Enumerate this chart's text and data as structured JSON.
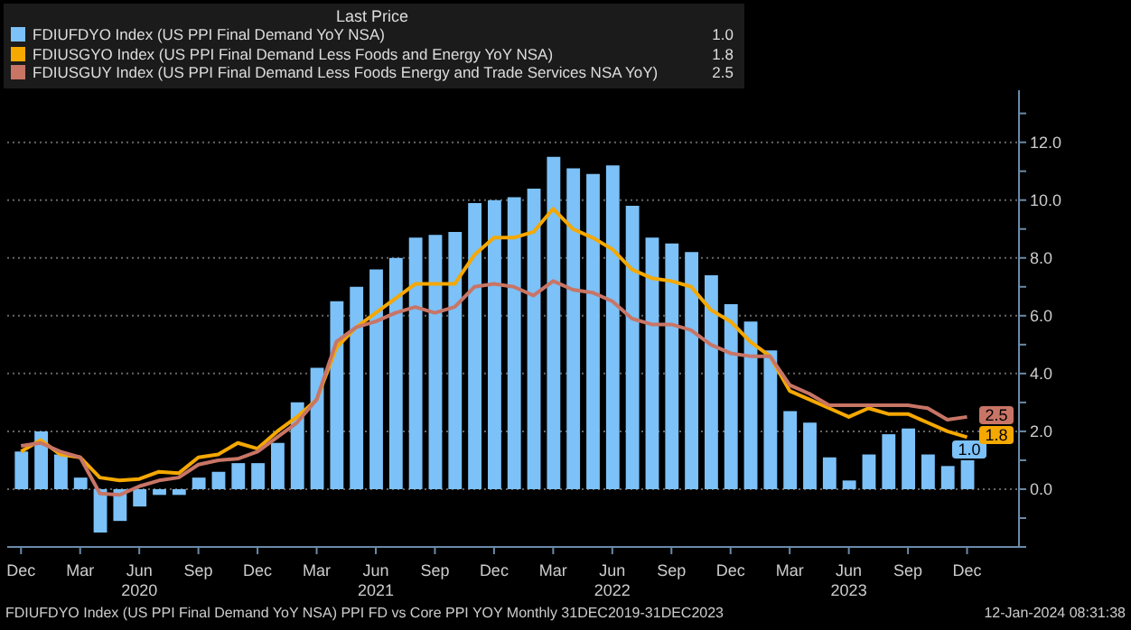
{
  "chart_data": {
    "type": "bar",
    "legend_title": "Last Price",
    "x": [
      "2019-12",
      "2020-01",
      "2020-02",
      "2020-03",
      "2020-04",
      "2020-05",
      "2020-06",
      "2020-07",
      "2020-08",
      "2020-09",
      "2020-10",
      "2020-11",
      "2020-12",
      "2021-01",
      "2021-02",
      "2021-03",
      "2021-04",
      "2021-05",
      "2021-06",
      "2021-07",
      "2021-08",
      "2021-09",
      "2021-10",
      "2021-11",
      "2021-12",
      "2022-01",
      "2022-02",
      "2022-03",
      "2022-04",
      "2022-05",
      "2022-06",
      "2022-07",
      "2022-08",
      "2022-09",
      "2022-10",
      "2022-11",
      "2022-12",
      "2023-01",
      "2023-02",
      "2023-03",
      "2023-04",
      "2023-05",
      "2023-06",
      "2023-07",
      "2023-08",
      "2023-09",
      "2023-10",
      "2023-11",
      "2023-12"
    ],
    "series": [
      {
        "name": "FDIUFDYO Index (US PPI Final Demand YoY NSA)",
        "color": "#7cc1f8",
        "values": [
          1.3,
          2.0,
          1.2,
          0.4,
          -1.5,
          -1.1,
          -0.6,
          -0.2,
          -0.2,
          0.4,
          0.6,
          0.9,
          0.9,
          1.6,
          3.0,
          4.2,
          6.5,
          7.0,
          7.6,
          8.0,
          8.7,
          8.8,
          8.9,
          9.9,
          10.0,
          10.1,
          10.4,
          11.5,
          11.1,
          10.9,
          11.2,
          9.8,
          8.7,
          8.5,
          8.2,
          7.4,
          6.4,
          5.8,
          4.8,
          2.7,
          2.3,
          1.1,
          0.3,
          1.2,
          1.9,
          2.1,
          1.2,
          0.8,
          1.0
        ],
        "value_labels": [
          null,
          null,
          null,
          null,
          null,
          null,
          null,
          null,
          null,
          null,
          null,
          null,
          null,
          null,
          null,
          null,
          null,
          null,
          null,
          null,
          null,
          null,
          null,
          null,
          null,
          null,
          null,
          null,
          null,
          null,
          null,
          null,
          null,
          null,
          null,
          null,
          null,
          null,
          null,
          null,
          null,
          null,
          null,
          null,
          null,
          null,
          null,
          null,
          "1.0"
        ]
      },
      {
        "type": "line",
        "name": "FDIUSGYO Index (US PPI Final Demand Less Foods and Energy YoY NSA)",
        "color": "#f5a800",
        "values": [
          1.3,
          1.7,
          1.2,
          1.1,
          0.4,
          0.3,
          0.35,
          0.6,
          0.55,
          1.1,
          1.2,
          1.6,
          1.4,
          2.0,
          2.5,
          3.1,
          4.9,
          5.6,
          6.1,
          6.6,
          7.1,
          7.1,
          7.1,
          8.1,
          8.7,
          8.7,
          8.9,
          9.7,
          9.0,
          8.7,
          8.3,
          7.6,
          7.3,
          7.2,
          7.0,
          6.2,
          5.8,
          5.1,
          4.6,
          3.4,
          3.1,
          2.8,
          2.5,
          2.8,
          2.6,
          2.6,
          2.3,
          2.0,
          1.8
        ],
        "value_labels": [
          null,
          null,
          null,
          null,
          null,
          null,
          null,
          null,
          null,
          null,
          null,
          null,
          null,
          null,
          null,
          null,
          null,
          null,
          null,
          null,
          null,
          null,
          null,
          null,
          null,
          null,
          null,
          null,
          null,
          null,
          null,
          null,
          null,
          null,
          null,
          null,
          null,
          null,
          null,
          null,
          null,
          null,
          null,
          null,
          null,
          null,
          null,
          null,
          "1.8"
        ]
      },
      {
        "type": "line",
        "name": "FDIUSGUY Index (US PPI Final Demand Less Foods Energy and Trade Services NSA YoY)",
        "color": "#c87566",
        "values": [
          1.5,
          1.6,
          1.3,
          1.1,
          -0.15,
          -0.2,
          0.1,
          0.3,
          0.4,
          0.85,
          1.0,
          1.05,
          1.3,
          1.8,
          2.3,
          3.1,
          5.1,
          5.6,
          5.8,
          6.1,
          6.3,
          6.1,
          6.3,
          7.0,
          7.1,
          7.0,
          6.7,
          7.2,
          6.9,
          6.8,
          6.5,
          5.9,
          5.7,
          5.7,
          5.5,
          5.0,
          4.7,
          4.6,
          4.6,
          3.6,
          3.3,
          2.9,
          2.9,
          2.9,
          2.9,
          2.9,
          2.8,
          2.4,
          2.5
        ],
        "value_labels": [
          null,
          null,
          null,
          null,
          null,
          null,
          null,
          null,
          null,
          null,
          null,
          null,
          null,
          null,
          null,
          null,
          null,
          null,
          null,
          null,
          null,
          null,
          null,
          null,
          null,
          null,
          null,
          null,
          null,
          null,
          null,
          null,
          null,
          null,
          null,
          null,
          null,
          null,
          null,
          null,
          null,
          null,
          null,
          null,
          null,
          null,
          null,
          null,
          "2.5"
        ]
      }
    ],
    "xlim": [
      "2019-11-10",
      "2024-02-20"
    ],
    "xticks": [
      {
        "value": "2019-12",
        "label": "Dec"
      },
      {
        "value": "2020-03",
        "label": "Mar"
      },
      {
        "value": "2020-06",
        "label": "Jun\n2020"
      },
      {
        "value": "2020-09",
        "label": "Sep"
      },
      {
        "value": "2020-12",
        "label": "Dec"
      },
      {
        "value": "2021-03",
        "label": "Mar"
      },
      {
        "value": "2021-06",
        "label": "Jun\n2021"
      },
      {
        "value": "2021-09",
        "label": "Sep"
      },
      {
        "value": "2021-12",
        "label": "Dec"
      },
      {
        "value": "2022-03",
        "label": "Mar"
      },
      {
        "value": "2022-06",
        "label": "Jun\n2022"
      },
      {
        "value": "2022-09",
        "label": "Sep"
      },
      {
        "value": "2022-12",
        "label": "Dec"
      },
      {
        "value": "2023-03",
        "label": "Mar"
      },
      {
        "value": "2023-06",
        "label": "Jun\n2023"
      },
      {
        "value": "2023-09",
        "label": "Sep"
      },
      {
        "value": "2023-12",
        "label": "Dec"
      }
    ],
    "ylim": [
      -2,
      13.8
    ],
    "yticks": [
      {
        "value": -2,
        "label": null
      },
      {
        "value": -1,
        "label": null
      },
      {
        "value": 0,
        "label": "0.0"
      },
      {
        "value": 1,
        "label": null
      },
      {
        "value": 2,
        "label": "2.0"
      },
      {
        "value": 3,
        "label": null
      },
      {
        "value": 4,
        "label": "4.0"
      },
      {
        "value": 5,
        "label": null
      },
      {
        "value": 6,
        "label": "6.0"
      },
      {
        "value": 7,
        "label": null
      },
      {
        "value": 8,
        "label": "8.0"
      },
      {
        "value": 9,
        "label": null
      },
      {
        "value": 10,
        "label": "10.0"
      },
      {
        "value": 11,
        "label": null
      },
      {
        "value": 12,
        "label": "12.0"
      },
      {
        "value": 13,
        "label": null
      }
    ],
    "grid": "y",
    "legend": "top left",
    "annotations": [
      "FDIUFDYO Index (US PPI Final Demand YoY NSA) PPI FD vs Core PPI YOY  Monthly 31DEC2019-31DEC2023",
      "12-Jan-2024 08:31:38"
    ]
  }
}
